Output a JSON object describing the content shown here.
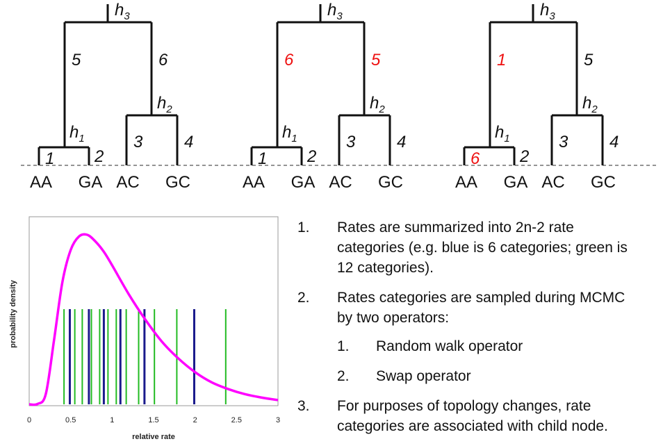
{
  "trees": [
    {
      "tips": [
        "AA",
        "GA",
        "AC",
        "GC"
      ],
      "node_labels": [
        "h",
        "h",
        "h"
      ],
      "node_subs": [
        "1",
        "2",
        "3"
      ],
      "branch_rates": [
        "1",
        "2",
        "3",
        "4",
        "5",
        "6"
      ],
      "highlighted_branches": []
    },
    {
      "tips": [
        "AA",
        "GA",
        "AC",
        "GC"
      ],
      "node_labels": [
        "h",
        "h",
        "h"
      ],
      "node_subs": [
        "1",
        "2",
        "3"
      ],
      "branch_rates": [
        "1",
        "2",
        "3",
        "4",
        "6",
        "5"
      ],
      "highlighted_branches": [
        4,
        5
      ]
    },
    {
      "tips": [
        "AA",
        "GA",
        "AC",
        "GC"
      ],
      "node_labels": [
        "h",
        "h",
        "h"
      ],
      "node_subs": [
        "1",
        "2",
        "3"
      ],
      "branch_rates": [
        "6",
        "2",
        "3",
        "4",
        "1",
        "5"
      ],
      "highlighted_branches": [
        0,
        4
      ]
    }
  ],
  "chart_data": {
    "type": "line",
    "xlabel": "relative rate",
    "ylabel": "probability density",
    "xlim": [
      0,
      3
    ],
    "x_ticks": [
      "0",
      "0.5",
      "1",
      "1.5",
      "2",
      "2.5",
      "3"
    ],
    "curve_color": "#ff00ff",
    "curve": {
      "x": [
        0,
        0.1,
        0.2,
        0.3,
        0.4,
        0.5,
        0.6,
        0.7,
        0.8,
        0.9,
        1.0,
        1.2,
        1.4,
        1.6,
        1.8,
        2.0,
        2.2,
        2.4,
        2.6,
        2.8,
        3.0
      ],
      "y": [
        0,
        0.002,
        0.06,
        0.38,
        0.72,
        0.91,
        0.99,
        1.0,
        0.96,
        0.9,
        0.82,
        0.65,
        0.5,
        0.37,
        0.27,
        0.19,
        0.13,
        0.09,
        0.06,
        0.04,
        0.025
      ]
    },
    "series": [
      {
        "name": "blue is 6 categories",
        "color": "#1a1a8c",
        "values": [
          0.49,
          0.72,
          0.9,
          1.1,
          1.39,
          1.99
        ]
      },
      {
        "name": "green is 12 categories",
        "color": "#22bb22",
        "values": [
          0.42,
          0.55,
          0.64,
          0.75,
          0.85,
          0.95,
          1.05,
          1.17,
          1.32,
          1.51,
          1.78,
          2.37
        ]
      }
    ]
  },
  "list": [
    {
      "num": "1.",
      "lines": [
        "Rates are summarized into 2n-2 rate",
        "categories (e.g. blue is 6 categories; green is",
        "12 categories)."
      ]
    },
    {
      "num": "2.",
      "lines": [
        "Rates categories are sampled during MCMC",
        "by two operators:"
      ]
    },
    {
      "num": "1.",
      "lines": [
        "Random walk operator"
      ]
    },
    {
      "num": "2.",
      "lines": [
        "Swap operator"
      ]
    },
    {
      "num": "3.",
      "lines": [
        "For purposes of topology changes, rate",
        "categories are associated with child node."
      ]
    }
  ]
}
